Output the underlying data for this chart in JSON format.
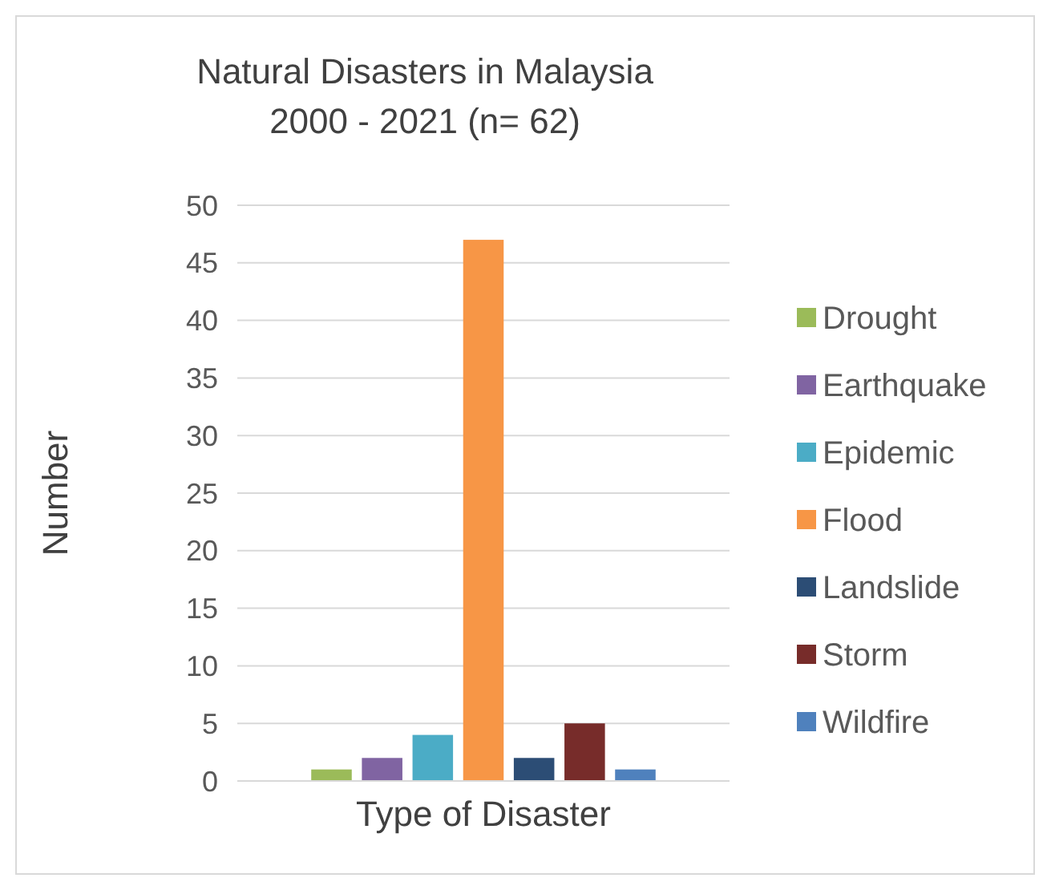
{
  "chart_data": {
    "type": "bar",
    "title": "Natural Disasters in Malaysia 2000 - 2021 (n= 62)",
    "xlabel": "Type of Disaster",
    "ylabel": "Number",
    "categories": [
      null
    ],
    "series": [
      {
        "name": "Drought",
        "color": "#9bbb59",
        "values": [
          1
        ]
      },
      {
        "name": "Earthquake",
        "color": "#8064a2",
        "values": [
          2
        ]
      },
      {
        "name": "Epidemic",
        "color": "#4bacc6",
        "values": [
          4
        ]
      },
      {
        "name": "Flood",
        "color": "#f79646",
        "values": [
          47
        ]
      },
      {
        "name": "Landslide",
        "color": "#2c4d75",
        "values": [
          2
        ]
      },
      {
        "name": "Storm",
        "color": "#772c2a",
        "values": [
          5
        ]
      },
      {
        "name": "Wildfire",
        "color": "#4f81bd",
        "values": [
          1
        ]
      }
    ],
    "ylim": [
      0,
      50
    ],
    "yticks": [
      0,
      5,
      10,
      15,
      20,
      25,
      30,
      35,
      40,
      45,
      50
    ],
    "grid": "y",
    "legend": "right"
  }
}
